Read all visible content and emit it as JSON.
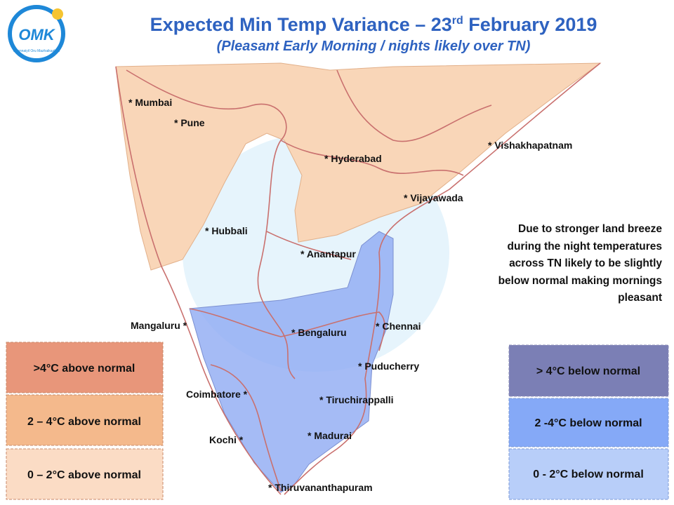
{
  "header": {
    "title": "Expected Min Temp Variance – 23",
    "title_superscript": "rd",
    "title_end": " February 2019",
    "subtitle": "(Pleasant Early Morning / nights likely over TN)",
    "logo_text": "Chennaiyil Oru Mazhaikaalam"
  },
  "cities": [
    "* Mumbai",
    "* Pune",
    "* Hyderabad",
    "* Vishakhapatnam",
    "* Vijayawada",
    "* Hubbali",
    "* Anantapur",
    "Mangaluru *",
    "* Bengaluru",
    "* Chennai",
    "* Puducherry",
    "Coimbatore *",
    "* Tiruchirappalli",
    "Kochi *",
    "* Madurai",
    "* Thiruvananthapuram"
  ],
  "note": [
    "Due to stronger land breeze",
    "during the night temperatures",
    "across TN likely to be slightly",
    "below normal making mornings",
    "pleasant"
  ],
  "legend_above": [
    ">4°C above normal",
    "2 – 4°C above normal",
    "0 – 2°C above normal"
  ],
  "legend_below": [
    "> 4°C  below normal",
    "2 -4°C below normal",
    "0 - 2°C below normal"
  ]
}
